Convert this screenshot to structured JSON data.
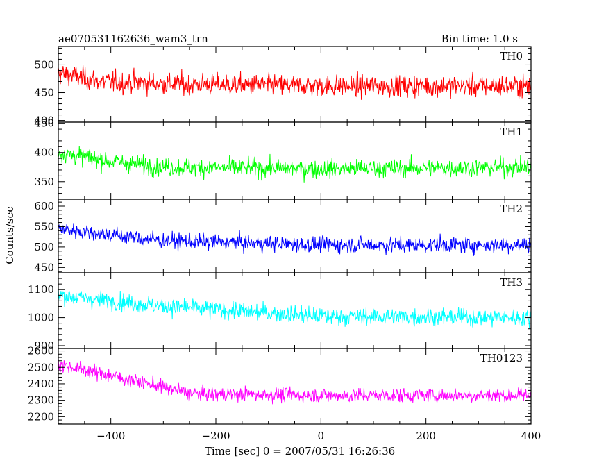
{
  "header": {
    "title": "ae070531162636_wam3_trn",
    "bin_time": "Bin time: 1.0 s"
  },
  "axes": {
    "xlabel": "Time [sec] 0 = 2007/05/31 16:26:36",
    "ylabel": "Counts/sec"
  },
  "chart_data": {
    "type": "line",
    "title": "ae070531162636_wam3_trn",
    "subtitle": "Bin time: 1.0 s",
    "xlabel": "Time [sec] 0 = 2007/05/31 16:26:36",
    "ylabel": "Counts/sec",
    "xlim": [
      -500,
      400
    ],
    "x_ticks": [
      -400,
      -200,
      0,
      200,
      400
    ],
    "x_tick_labels": [
      "−400",
      "−200",
      "0",
      "200",
      "400"
    ],
    "x_minor_tick_step": 50,
    "grid": false,
    "panels": [
      {
        "name": "TH0",
        "color": "#ff0000",
        "ylim": [
          397,
          533
        ],
        "y_ticks": [
          400,
          450,
          500
        ],
        "y_minor_tick_step": 10,
        "trend": [
          [
            -500,
            485
          ],
          [
            -420,
            470
          ],
          [
            -300,
            466
          ],
          [
            0,
            462
          ],
          [
            400,
            462
          ]
        ],
        "amplitude": 25
      },
      {
        "name": "TH1",
        "color": "#00ff00",
        "ylim": [
          320,
          452
        ],
        "y_ticks": [
          350,
          400,
          450
        ],
        "y_minor_tick_step": 10,
        "trend": [
          [
            -500,
            400
          ],
          [
            -400,
            385
          ],
          [
            -300,
            375
          ],
          [
            0,
            372
          ],
          [
            400,
            375
          ]
        ],
        "amplitude": 20
      },
      {
        "name": "TH2",
        "color": "#0000ff",
        "ylim": [
          437,
          617
        ],
        "y_ticks": [
          450,
          500,
          550,
          600
        ],
        "y_minor_tick_step": 10,
        "trend": [
          [
            -500,
            545
          ],
          [
            -400,
            530
          ],
          [
            -300,
            515
          ],
          [
            0,
            505
          ],
          [
            400,
            505
          ]
        ],
        "amplitude": 25
      },
      {
        "name": "TH3",
        "color": "#00ffff",
        "ylim": [
          890,
          1160
        ],
        "y_ticks": [
          900,
          1000,
          1100
        ],
        "y_minor_tick_step": 20,
        "trend": [
          [
            -500,
            1080
          ],
          [
            -400,
            1060
          ],
          [
            -300,
            1040
          ],
          [
            0,
            1005
          ],
          [
            400,
            1000
          ]
        ],
        "amplitude": 40
      },
      {
        "name": "TH0123",
        "color": "#ff00ff",
        "ylim": [
          2155,
          2615
        ],
        "y_ticks": [
          2200,
          2300,
          2400,
          2500,
          2600
        ],
        "y_minor_tick_step": 20,
        "trend": [
          [
            -500,
            2520
          ],
          [
            -400,
            2450
          ],
          [
            -300,
            2380
          ],
          [
            -250,
            2340
          ],
          [
            0,
            2330
          ],
          [
            400,
            2330
          ]
        ],
        "amplitude": 55
      }
    ]
  }
}
